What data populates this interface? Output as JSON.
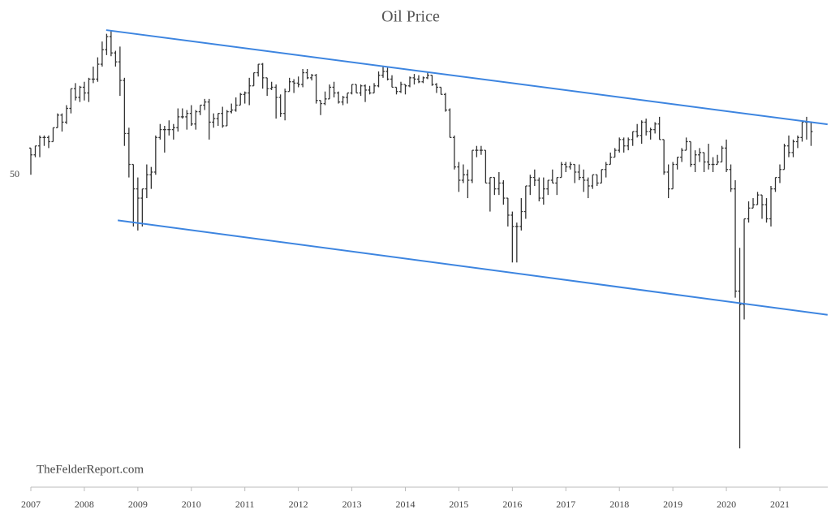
{
  "chart_data": {
    "type": "ohlc",
    "title": "Oil Price",
    "annotation": "TheFelderReport.com",
    "categories": [
      "2007",
      null,
      null,
      null,
      null,
      null,
      null,
      null,
      null,
      null,
      null,
      null,
      "2008",
      null,
      null,
      null,
      null,
      null,
      null,
      null,
      null,
      null,
      null,
      null,
      "2009",
      null,
      null,
      null,
      null,
      null,
      null,
      null,
      null,
      null,
      null,
      null,
      "2010",
      null,
      null,
      null,
      null,
      null,
      null,
      null,
      null,
      null,
      null,
      null,
      "2011",
      null,
      null,
      null,
      null,
      null,
      null,
      null,
      null,
      null,
      null,
      null,
      "2012",
      null,
      null,
      null,
      null,
      null,
      null,
      null,
      null,
      null,
      null,
      null,
      "2013",
      null,
      null,
      null,
      null,
      null,
      null,
      null,
      null,
      null,
      null,
      null,
      "2014",
      null,
      null,
      null,
      null,
      null,
      null,
      null,
      null,
      null,
      null,
      null,
      "2015",
      null,
      null,
      null,
      null,
      null,
      null,
      null,
      null,
      null,
      null,
      null,
      "2016",
      null,
      null,
      null,
      null,
      null,
      null,
      null,
      null,
      null,
      null,
      null,
      "2017",
      null,
      null,
      null,
      null,
      null,
      null,
      null,
      null,
      null,
      null,
      null,
      "2018",
      null,
      null,
      null,
      null,
      null,
      null,
      null,
      null,
      null,
      null,
      null,
      "2019",
      null,
      null,
      null,
      null,
      null,
      null,
      null,
      null,
      null,
      null,
      null,
      "2020",
      null,
      null,
      null,
      null,
      null,
      null,
      null,
      null,
      null,
      null,
      null,
      "2021",
      null,
      null,
      null,
      null,
      null,
      null,
      null
    ],
    "open": [
      61,
      58,
      62,
      66,
      66,
      64,
      71,
      78,
      74,
      82,
      95,
      89,
      96,
      92,
      102,
      102,
      114,
      127,
      140,
      124,
      116,
      101,
      68,
      54,
      45,
      42,
      45,
      50,
      51,
      66,
      70,
      70,
      70,
      71,
      77,
      77,
      79,
      73,
      80,
      84,
      86,
      74,
      76,
      79,
      72,
      80,
      81,
      84,
      91,
      92,
      97,
      107,
      114,
      103,
      95,
      96,
      89,
      79,
      93,
      100,
      99,
      98,
      107,
      103,
      105,
      87,
      85,
      88,
      96,
      92,
      86,
      89,
      92,
      98,
      92,
      97,
      94,
      92,
      97,
      105,
      108,
      102,
      96,
      93,
      98,
      97,
      103,
      102,
      100,
      103,
      105,
      98,
      96,
      91,
      81,
      66,
      53,
      48,
      50,
      48,
      60,
      60,
      60,
      47,
      49,
      45,
      47,
      42,
      37,
      34,
      34,
      38,
      46,
      49,
      48,
      42,
      45,
      48,
      47,
      49,
      54,
      53,
      54,
      51,
      49,
      48,
      46,
      50,
      47,
      52,
      54,
      57,
      60,
      65,
      62,
      65,
      69,
      67,
      74,
      69,
      70,
      73,
      65,
      51,
      45,
      54,
      57,
      60,
      64,
      54,
      58,
      59,
      55,
      54,
      54,
      55,
      61,
      52,
      45,
      21,
      19,
      36,
      39,
      40,
      43,
      40,
      36,
      45,
      49,
      52,
      62,
      59,
      64,
      66,
      74,
      74
    ],
    "high": [
      61,
      62,
      67,
      67,
      67,
      71,
      79,
      79,
      84,
      95,
      99,
      97,
      100,
      103,
      112,
      120,
      135,
      143,
      147,
      126,
      130,
      103,
      71,
      54,
      49,
      45,
      54,
      53,
      67,
      73,
      72,
      75,
      73,
      82,
      82,
      81,
      84,
      81,
      84,
      88,
      88,
      79,
      79,
      83,
      81,
      85,
      89,
      92,
      93,
      103,
      107,
      114,
      115,
      103,
      100,
      98,
      91,
      95,
      103,
      102,
      104,
      110,
      110,
      106,
      106,
      87,
      93,
      98,
      100,
      93,
      90,
      92,
      98,
      98,
      98,
      98,
      97,
      99,
      108,
      112,
      111,
      105,
      96,
      100,
      98,
      104,
      106,
      105,
      104,
      107,
      105,
      99,
      96,
      92,
      82,
      67,
      55,
      54,
      52,
      60,
      62,
      62,
      60,
      49,
      49,
      51,
      48,
      42,
      38,
      35,
      42,
      46,
      50,
      52,
      49,
      49,
      48,
      52,
      49,
      55,
      55,
      55,
      54,
      54,
      52,
      49,
      50,
      50,
      52,
      55,
      59,
      61,
      66,
      66,
      66,
      69,
      73,
      75,
      76,
      71,
      74,
      77,
      65,
      54,
      55,
      57,
      61,
      66,
      64,
      60,
      61,
      59,
      63,
      57,
      58,
      62,
      65,
      54,
      48,
      29,
      36,
      41,
      42,
      44,
      43,
      42,
      46,
      49,
      54,
      63,
      67,
      65,
      67,
      74,
      77,
      74
    ],
    "low": [
      50,
      57,
      57,
      62,
      61,
      64,
      71,
      69,
      73,
      79,
      87,
      86,
      87,
      86,
      99,
      100,
      112,
      122,
      121,
      112,
      90,
      62,
      49,
      34,
      33,
      34,
      42,
      45,
      50,
      65,
      59,
      67,
      65,
      69,
      76,
      70,
      72,
      70,
      78,
      81,
      65,
      71,
      72,
      71,
      72,
      79,
      80,
      84,
      85,
      84,
      97,
      104,
      95,
      90,
      94,
      76,
      77,
      75,
      93,
      92,
      96,
      96,
      102,
      101,
      85,
      78,
      84,
      88,
      89,
      85,
      84,
      85,
      91,
      92,
      90,
      86,
      91,
      92,
      96,
      103,
      101,
      96,
      91,
      92,
      91,
      96,
      98,
      99,
      99,
      102,
      97,
      92,
      91,
      80,
      66,
      52,
      44,
      47,
      42,
      47,
      57,
      58,
      47,
      38,
      43,
      43,
      40,
      34,
      26,
      26,
      33,
      36,
      43,
      46,
      41,
      40,
      43,
      47,
      43,
      49,
      51,
      52,
      47,
      48,
      44,
      42,
      45,
      46,
      47,
      49,
      54,
      57,
      59,
      59,
      60,
      62,
      66,
      63,
      67,
      65,
      68,
      65,
      50,
      42,
      45,
      52,
      55,
      60,
      53,
      51,
      55,
      51,
      52,
      51,
      54,
      55,
      51,
      44,
      20,
      6.5,
      17,
      35,
      39,
      40,
      36,
      35,
      34,
      44,
      47,
      52,
      57,
      57,
      61,
      64,
      65,
      62
    ],
    "close": [
      58,
      62,
      66,
      66,
      64,
      71,
      78,
      74,
      82,
      95,
      89,
      96,
      92,
      102,
      102,
      114,
      127,
      140,
      124,
      116,
      101,
      68,
      54,
      45,
      42,
      45,
      50,
      51,
      66,
      70,
      70,
      70,
      71,
      77,
      77,
      79,
      73,
      80,
      84,
      86,
      74,
      76,
      79,
      72,
      80,
      81,
      84,
      91,
      92,
      97,
      107,
      114,
      103,
      95,
      96,
      89,
      79,
      93,
      100,
      99,
      98,
      107,
      103,
      105,
      87,
      85,
      88,
      96,
      92,
      86,
      89,
      92,
      98,
      92,
      97,
      94,
      92,
      97,
      105,
      108,
      102,
      96,
      93,
      98,
      97,
      103,
      102,
      100,
      103,
      105,
      98,
      96,
      91,
      81,
      66,
      53,
      48,
      50,
      48,
      60,
      60,
      60,
      47,
      49,
      45,
      47,
      42,
      37,
      34,
      34,
      38,
      46,
      49,
      48,
      42,
      45,
      48,
      47,
      49,
      54,
      53,
      54,
      51,
      49,
      48,
      46,
      50,
      47,
      52,
      54,
      57,
      60,
      65,
      62,
      65,
      69,
      67,
      74,
      69,
      70,
      73,
      65,
      51,
      45,
      54,
      57,
      60,
      64,
      54,
      58,
      59,
      55,
      54,
      54,
      55,
      61,
      52,
      45,
      21,
      19,
      36,
      39,
      40,
      43,
      40,
      36,
      45,
      49,
      52,
      62,
      59,
      64,
      66,
      74,
      74,
      69
    ],
    "color": "#333333",
    "log_scale": true,
    "grid": false,
    "ylim": [
      4.87,
      163
    ],
    "yticks": [
      50
    ],
    "trendlines": [
      {
        "color": "#3d85e0",
        "x": [
          16.9,
          178.7
        ],
        "y": [
          147,
          72.8
        ]
      },
      {
        "color": "#3d85e0",
        "x": [
          19.5,
          178.7
        ],
        "y": [
          35.6,
          17.6
        ]
      }
    ]
  }
}
